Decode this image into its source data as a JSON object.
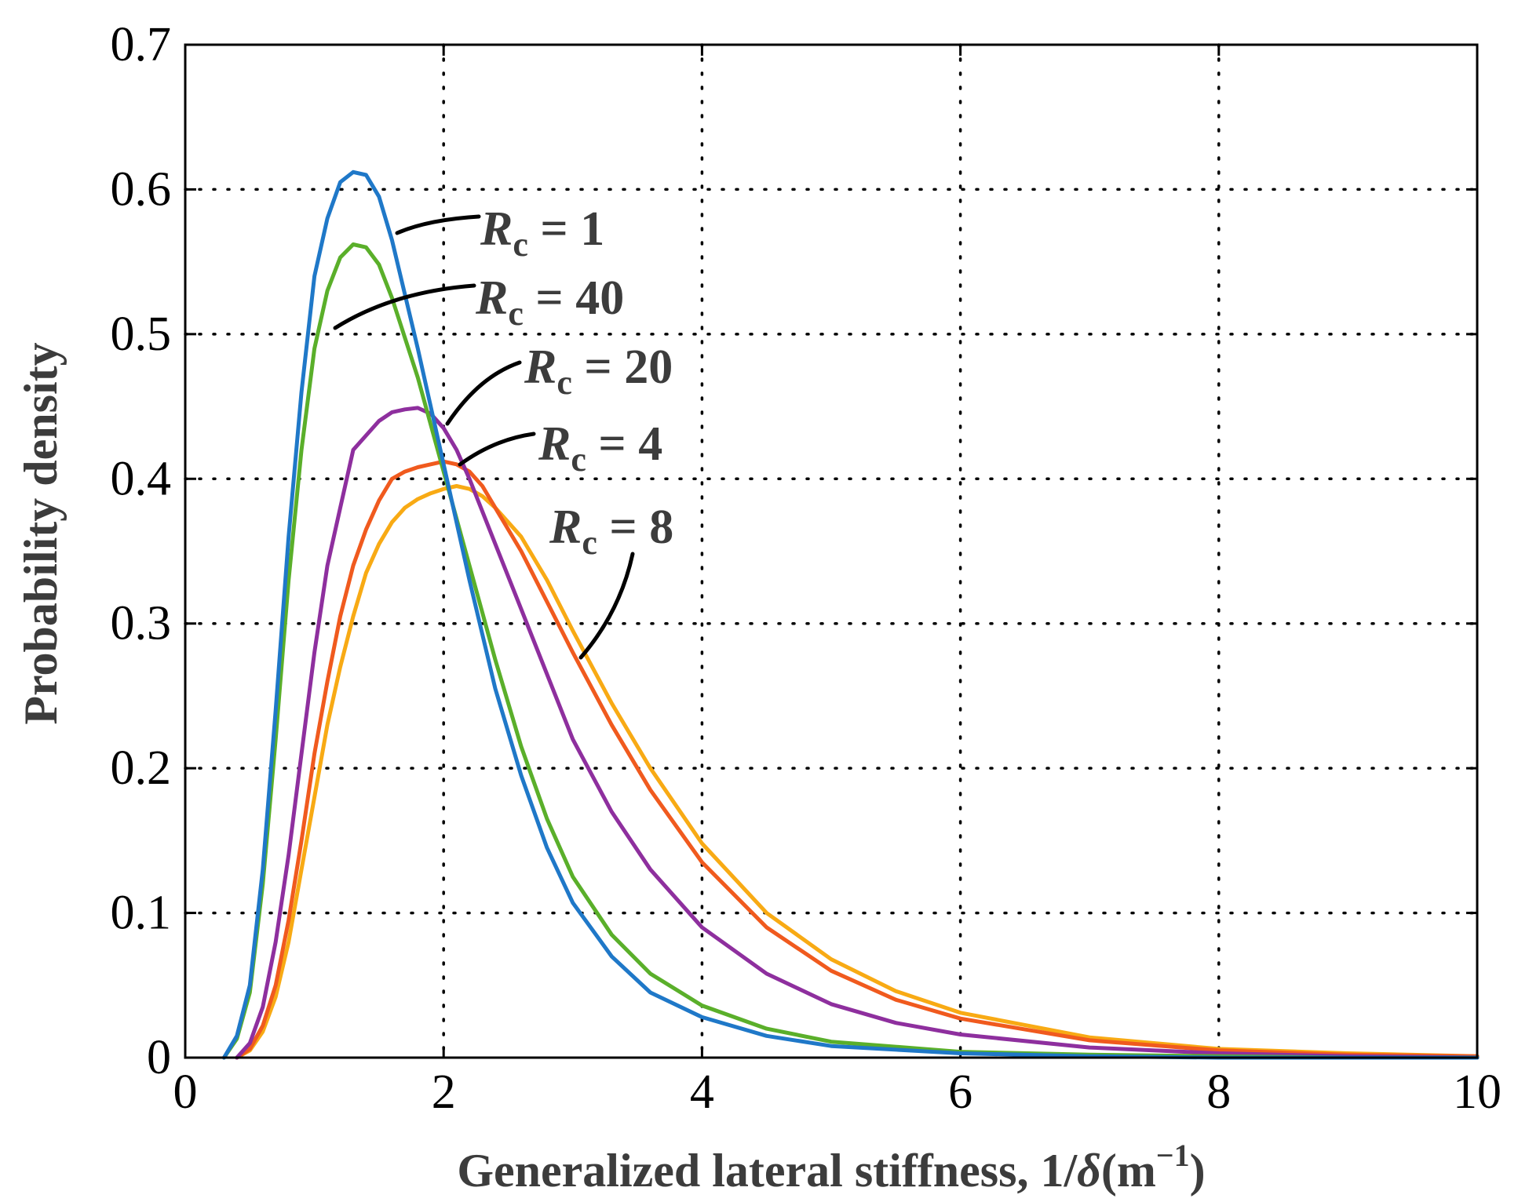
{
  "chart_data": {
    "type": "line",
    "title": "",
    "xlabel": {
      "main": "Generalized lateral stiffness, 1/",
      "symbol": "δ",
      "unit_open": "(m",
      "unit_sup": "−1",
      "unit_close": ")"
    },
    "ylabel": "Probability density",
    "xlim": [
      0,
      10
    ],
    "ylim": [
      0,
      0.7
    ],
    "xticks": [
      0,
      2,
      4,
      6,
      8,
      10
    ],
    "xtick_labels": [
      "0",
      "2",
      "4",
      "6",
      "8",
      "10"
    ],
    "yticks": [
      0,
      0.1,
      0.2,
      0.3,
      0.4,
      0.5,
      0.6,
      0.7
    ],
    "ytick_labels": [
      "0",
      "0.1",
      "0.2",
      "0.3",
      "0.4",
      "0.5",
      "0.6",
      "0.7"
    ],
    "grid": true,
    "series": [
      {
        "name": "R_c = 1",
        "color": "#1f78c8",
        "x": [
          0.3,
          0.4,
          0.5,
          0.6,
          0.7,
          0.8,
          0.9,
          1.0,
          1.1,
          1.2,
          1.3,
          1.4,
          1.5,
          1.6,
          1.8,
          2.0,
          2.2,
          2.4,
          2.6,
          2.8,
          3.0,
          3.3,
          3.6,
          4.0,
          4.5,
          5.0,
          6.0,
          7.0,
          8.0,
          9.0,
          10.0
        ],
        "y": [
          0.0,
          0.015,
          0.05,
          0.13,
          0.24,
          0.36,
          0.46,
          0.54,
          0.58,
          0.605,
          0.612,
          0.61,
          0.595,
          0.565,
          0.49,
          0.41,
          0.33,
          0.255,
          0.195,
          0.145,
          0.107,
          0.07,
          0.045,
          0.028,
          0.015,
          0.008,
          0.003,
          0.001,
          0.0,
          0.0,
          0.0
        ]
      },
      {
        "name": "R_c = 40",
        "color": "#5aaf2a",
        "x": [
          0.3,
          0.4,
          0.5,
          0.6,
          0.7,
          0.8,
          0.9,
          1.0,
          1.1,
          1.2,
          1.3,
          1.4,
          1.5,
          1.6,
          1.8,
          2.0,
          2.2,
          2.4,
          2.6,
          2.8,
          3.0,
          3.3,
          3.6,
          4.0,
          4.5,
          5.0,
          6.0,
          7.0,
          8.0,
          9.0,
          10.0
        ],
        "y": [
          0.0,
          0.013,
          0.045,
          0.12,
          0.22,
          0.33,
          0.42,
          0.49,
          0.53,
          0.553,
          0.562,
          0.56,
          0.548,
          0.525,
          0.47,
          0.405,
          0.34,
          0.275,
          0.215,
          0.165,
          0.125,
          0.085,
          0.058,
          0.036,
          0.02,
          0.011,
          0.004,
          0.002,
          0.001,
          0.0,
          0.0
        ]
      },
      {
        "name": "R_c = 20",
        "color": "#8e2f9e",
        "x": [
          0.4,
          0.5,
          0.6,
          0.7,
          0.8,
          0.9,
          1.0,
          1.1,
          1.2,
          1.3,
          1.4,
          1.5,
          1.6,
          1.7,
          1.8,
          1.9,
          2.0,
          2.1,
          2.2,
          2.4,
          2.6,
          2.8,
          3.0,
          3.3,
          3.6,
          4.0,
          4.5,
          5.0,
          5.5,
          6.0,
          7.0,
          8.0,
          9.0,
          10.0
        ],
        "y": [
          0.0,
          0.01,
          0.035,
          0.08,
          0.14,
          0.21,
          0.28,
          0.34,
          0.38,
          0.42,
          0.43,
          0.44,
          0.446,
          0.448,
          0.449,
          0.445,
          0.435,
          0.42,
          0.4,
          0.355,
          0.31,
          0.265,
          0.22,
          0.17,
          0.13,
          0.09,
          0.058,
          0.037,
          0.024,
          0.016,
          0.007,
          0.003,
          0.001,
          0.0
        ]
      },
      {
        "name": "R_c = 4",
        "color": "#f05a1e",
        "x": [
          0.4,
          0.5,
          0.6,
          0.7,
          0.8,
          0.9,
          1.0,
          1.1,
          1.2,
          1.3,
          1.4,
          1.5,
          1.6,
          1.7,
          1.8,
          1.9,
          2.0,
          2.1,
          2.2,
          2.3,
          2.4,
          2.6,
          2.8,
          3.0,
          3.3,
          3.6,
          4.0,
          4.5,
          5.0,
          5.5,
          6.0,
          7.0,
          8.0,
          9.0,
          10.0
        ],
        "y": [
          0.0,
          0.006,
          0.022,
          0.05,
          0.095,
          0.15,
          0.21,
          0.26,
          0.305,
          0.34,
          0.365,
          0.385,
          0.4,
          0.405,
          0.408,
          0.41,
          0.412,
          0.41,
          0.405,
          0.395,
          0.38,
          0.35,
          0.315,
          0.28,
          0.23,
          0.185,
          0.135,
          0.09,
          0.06,
          0.04,
          0.027,
          0.012,
          0.005,
          0.002,
          0.001
        ]
      },
      {
        "name": "R_c = 8",
        "color": "#f8aa14",
        "x": [
          0.4,
          0.5,
          0.6,
          0.7,
          0.8,
          0.9,
          1.0,
          1.1,
          1.2,
          1.3,
          1.4,
          1.5,
          1.6,
          1.7,
          1.8,
          1.9,
          2.0,
          2.1,
          2.2,
          2.3,
          2.4,
          2.6,
          2.8,
          3.0,
          3.3,
          3.6,
          4.0,
          4.5,
          5.0,
          5.5,
          6.0,
          7.0,
          8.0,
          9.0,
          10.0
        ],
        "y": [
          0.0,
          0.005,
          0.018,
          0.042,
          0.08,
          0.13,
          0.18,
          0.23,
          0.27,
          0.305,
          0.335,
          0.355,
          0.37,
          0.38,
          0.386,
          0.39,
          0.393,
          0.395,
          0.393,
          0.388,
          0.38,
          0.36,
          0.33,
          0.295,
          0.245,
          0.2,
          0.148,
          0.1,
          0.068,
          0.046,
          0.031,
          0.014,
          0.006,
          0.003,
          0.001
        ]
      }
    ],
    "annotations": [
      {
        "symbol": "R",
        "sub": "c",
        "rest": " = 1"
      },
      {
        "symbol": "R",
        "sub": "c",
        "rest": " = 40"
      },
      {
        "symbol": "R",
        "sub": "c",
        "rest": " = 20"
      },
      {
        "symbol": "R",
        "sub": "c",
        "rest": " = 4"
      },
      {
        "symbol": "R",
        "sub": "c",
        "rest": " = 8"
      }
    ]
  }
}
